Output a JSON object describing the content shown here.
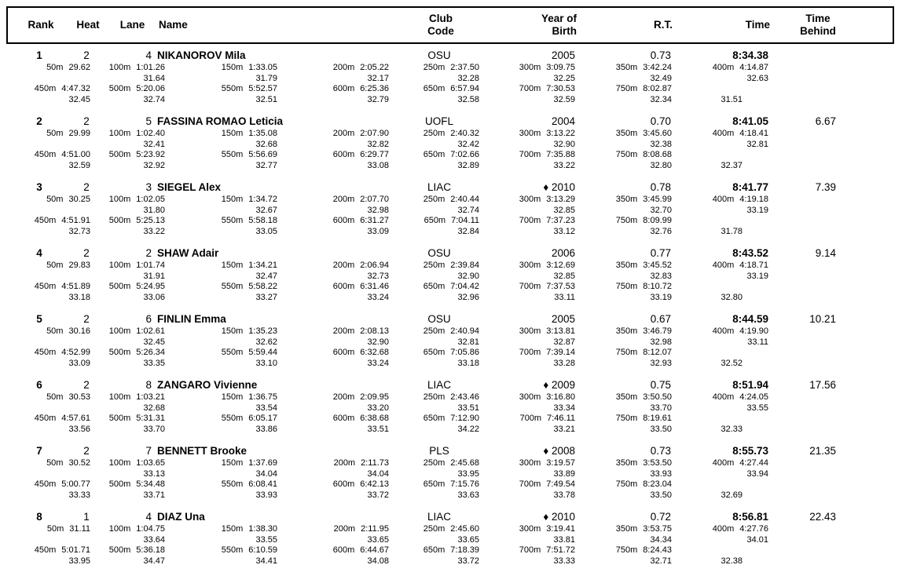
{
  "page": {
    "background": "#ffffff",
    "text_color": "#000000"
  },
  "header": {
    "rank": "Rank",
    "heat": "Heat",
    "lane": "Lane",
    "name": "Name",
    "club_line1": "Club",
    "club_line2": "Code",
    "yob_line1": "Year of",
    "yob_line2": "Birth",
    "rt": "R.T.",
    "time": "Time",
    "behind_line1": "Time",
    "behind_line2": "Behind"
  },
  "age_marker_glyph": "♦",
  "results": [
    {
      "rank": "1",
      "heat": "2",
      "lane": "4",
      "name": "NIKANOROV Mila",
      "club": "OSU",
      "year_marker": "",
      "year": "2005",
      "rt": "0.73",
      "time": "8:34.38",
      "behind": "",
      "splits_row1": [
        {
          "d": "50m",
          "t": "29.62"
        },
        {
          "d": "100m",
          "t": "1:01.26"
        },
        {
          "d": "150m",
          "t": "1:33.05"
        },
        {
          "d": "200m",
          "t": "2:05.22"
        },
        {
          "d": "250m",
          "t": "2:37.50"
        },
        {
          "d": "300m",
          "t": "3:09.75"
        },
        {
          "d": "350m",
          "t": "3:42.24"
        },
        {
          "d": "400m",
          "t": "4:14.87"
        }
      ],
      "laps_row1": [
        "31.64",
        "31.79",
        "32.17",
        "32.28",
        "32.25",
        "32.49",
        "32.63"
      ],
      "splits_row2": [
        {
          "d": "450m",
          "t": "4:47.32"
        },
        {
          "d": "500m",
          "t": "5:20.06"
        },
        {
          "d": "550m",
          "t": "5:52.57"
        },
        {
          "d": "600m",
          "t": "6:25.36"
        },
        {
          "d": "650m",
          "t": "6:57.94"
        },
        {
          "d": "700m",
          "t": "7:30.53"
        },
        {
          "d": "750m",
          "t": "8:02.87"
        }
      ],
      "laps_row2": [
        "32.45",
        "32.74",
        "32.51",
        "32.79",
        "32.58",
        "32.59",
        "32.34"
      ],
      "final_lap": "31.51"
    },
    {
      "rank": "2",
      "heat": "2",
      "lane": "5",
      "name": "FASSINA ROMAO Leticia",
      "club": "UOFL",
      "year_marker": "",
      "year": "2004",
      "rt": "0.70",
      "time": "8:41.05",
      "behind": "6.67",
      "splits_row1": [
        {
          "d": "50m",
          "t": "29.99"
        },
        {
          "d": "100m",
          "t": "1:02.40"
        },
        {
          "d": "150m",
          "t": "1:35.08"
        },
        {
          "d": "200m",
          "t": "2:07.90"
        },
        {
          "d": "250m",
          "t": "2:40.32"
        },
        {
          "d": "300m",
          "t": "3:13.22"
        },
        {
          "d": "350m",
          "t": "3:45.60"
        },
        {
          "d": "400m",
          "t": "4:18.41"
        }
      ],
      "laps_row1": [
        "32.41",
        "32.68",
        "32.82",
        "32.42",
        "32.90",
        "32.38",
        "32.81"
      ],
      "splits_row2": [
        {
          "d": "450m",
          "t": "4:51.00"
        },
        {
          "d": "500m",
          "t": "5:23.92"
        },
        {
          "d": "550m",
          "t": "5:56.69"
        },
        {
          "d": "600m",
          "t": "6:29.77"
        },
        {
          "d": "650m",
          "t": "7:02.66"
        },
        {
          "d": "700m",
          "t": "7:35.88"
        },
        {
          "d": "750m",
          "t": "8:08.68"
        }
      ],
      "laps_row2": [
        "32.59",
        "32.92",
        "32.77",
        "33.08",
        "32.89",
        "33.22",
        "32.80"
      ],
      "final_lap": "32.37"
    },
    {
      "rank": "3",
      "heat": "2",
      "lane": "3",
      "name": "SIEGEL Alex",
      "club": "LIAC",
      "year_marker": "♦",
      "year": "2010",
      "rt": "0.78",
      "time": "8:41.77",
      "behind": "7.39",
      "splits_row1": [
        {
          "d": "50m",
          "t": "30.25"
        },
        {
          "d": "100m",
          "t": "1:02.05"
        },
        {
          "d": "150m",
          "t": "1:34.72"
        },
        {
          "d": "200m",
          "t": "2:07.70"
        },
        {
          "d": "250m",
          "t": "2:40.44"
        },
        {
          "d": "300m",
          "t": "3:13.29"
        },
        {
          "d": "350m",
          "t": "3:45.99"
        },
        {
          "d": "400m",
          "t": "4:19.18"
        }
      ],
      "laps_row1": [
        "31.80",
        "32.67",
        "32.98",
        "32.74",
        "32.85",
        "32.70",
        "33.19"
      ],
      "splits_row2": [
        {
          "d": "450m",
          "t": "4:51.91"
        },
        {
          "d": "500m",
          "t": "5:25.13"
        },
        {
          "d": "550m",
          "t": "5:58.18"
        },
        {
          "d": "600m",
          "t": "6:31.27"
        },
        {
          "d": "650m",
          "t": "7:04.11"
        },
        {
          "d": "700m",
          "t": "7:37.23"
        },
        {
          "d": "750m",
          "t": "8:09.99"
        }
      ],
      "laps_row2": [
        "32.73",
        "33.22",
        "33.05",
        "33.09",
        "32.84",
        "33.12",
        "32.76"
      ],
      "final_lap": "31.78"
    },
    {
      "rank": "4",
      "heat": "2",
      "lane": "2",
      "name": "SHAW Adair",
      "club": "OSU",
      "year_marker": "",
      "year": "2006",
      "rt": "0.77",
      "time": "8:43.52",
      "behind": "9.14",
      "splits_row1": [
        {
          "d": "50m",
          "t": "29.83"
        },
        {
          "d": "100m",
          "t": "1:01.74"
        },
        {
          "d": "150m",
          "t": "1:34.21"
        },
        {
          "d": "200m",
          "t": "2:06.94"
        },
        {
          "d": "250m",
          "t": "2:39.84"
        },
        {
          "d": "300m",
          "t": "3:12.69"
        },
        {
          "d": "350m",
          "t": "3:45.52"
        },
        {
          "d": "400m",
          "t": "4:18.71"
        }
      ],
      "laps_row1": [
        "31.91",
        "32.47",
        "32.73",
        "32.90",
        "32.85",
        "32.83",
        "33.19"
      ],
      "splits_row2": [
        {
          "d": "450m",
          "t": "4:51.89"
        },
        {
          "d": "500m",
          "t": "5:24.95"
        },
        {
          "d": "550m",
          "t": "5:58.22"
        },
        {
          "d": "600m",
          "t": "6:31.46"
        },
        {
          "d": "650m",
          "t": "7:04.42"
        },
        {
          "d": "700m",
          "t": "7:37.53"
        },
        {
          "d": "750m",
          "t": "8:10.72"
        }
      ],
      "laps_row2": [
        "33.18",
        "33.06",
        "33.27",
        "33.24",
        "32.96",
        "33.11",
        "33.19"
      ],
      "final_lap": "32.80"
    },
    {
      "rank": "5",
      "heat": "2",
      "lane": "6",
      "name": "FINLIN Emma",
      "club": "OSU",
      "year_marker": "",
      "year": "2005",
      "rt": "0.67",
      "time": "8:44.59",
      "behind": "10.21",
      "splits_row1": [
        {
          "d": "50m",
          "t": "30.16"
        },
        {
          "d": "100m",
          "t": "1:02.61"
        },
        {
          "d": "150m",
          "t": "1:35.23"
        },
        {
          "d": "200m",
          "t": "2:08.13"
        },
        {
          "d": "250m",
          "t": "2:40.94"
        },
        {
          "d": "300m",
          "t": "3:13.81"
        },
        {
          "d": "350m",
          "t": "3:46.79"
        },
        {
          "d": "400m",
          "t": "4:19.90"
        }
      ],
      "laps_row1": [
        "32.45",
        "32.62",
        "32.90",
        "32.81",
        "32.87",
        "32.98",
        "33.11"
      ],
      "splits_row2": [
        {
          "d": "450m",
          "t": "4:52.99"
        },
        {
          "d": "500m",
          "t": "5:26.34"
        },
        {
          "d": "550m",
          "t": "5:59.44"
        },
        {
          "d": "600m",
          "t": "6:32.68"
        },
        {
          "d": "650m",
          "t": "7:05.86"
        },
        {
          "d": "700m",
          "t": "7:39.14"
        },
        {
          "d": "750m",
          "t": "8:12.07"
        }
      ],
      "laps_row2": [
        "33.09",
        "33.35",
        "33.10",
        "33.24",
        "33.18",
        "33.28",
        "32.93"
      ],
      "final_lap": "32.52"
    },
    {
      "rank": "6",
      "heat": "2",
      "lane": "8",
      "name": "ZANGARO Vivienne",
      "club": "LIAC",
      "year_marker": "♦",
      "year": "2009",
      "rt": "0.75",
      "time": "8:51.94",
      "behind": "17.56",
      "splits_row1": [
        {
          "d": "50m",
          "t": "30.53"
        },
        {
          "d": "100m",
          "t": "1:03.21"
        },
        {
          "d": "150m",
          "t": "1:36.75"
        },
        {
          "d": "200m",
          "t": "2:09.95"
        },
        {
          "d": "250m",
          "t": "2:43.46"
        },
        {
          "d": "300m",
          "t": "3:16.80"
        },
        {
          "d": "350m",
          "t": "3:50.50"
        },
        {
          "d": "400m",
          "t": "4:24.05"
        }
      ],
      "laps_row1": [
        "32.68",
        "33.54",
        "33.20",
        "33.51",
        "33.34",
        "33.70",
        "33.55"
      ],
      "splits_row2": [
        {
          "d": "450m",
          "t": "4:57.61"
        },
        {
          "d": "500m",
          "t": "5:31.31"
        },
        {
          "d": "550m",
          "t": "6:05.17"
        },
        {
          "d": "600m",
          "t": "6:38.68"
        },
        {
          "d": "650m",
          "t": "7:12.90"
        },
        {
          "d": "700m",
          "t": "7:46.11"
        },
        {
          "d": "750m",
          "t": "8:19.61"
        }
      ],
      "laps_row2": [
        "33.56",
        "33.70",
        "33.86",
        "33.51",
        "34.22",
        "33.21",
        "33.50"
      ],
      "final_lap": "32.33"
    },
    {
      "rank": "7",
      "heat": "2",
      "lane": "7",
      "name": "BENNETT Brooke",
      "club": "PLS",
      "year_marker": "♦",
      "year": "2008",
      "rt": "0.73",
      "time": "8:55.73",
      "behind": "21.35",
      "splits_row1": [
        {
          "d": "50m",
          "t": "30.52"
        },
        {
          "d": "100m",
          "t": "1:03.65"
        },
        {
          "d": "150m",
          "t": "1:37.69"
        },
        {
          "d": "200m",
          "t": "2:11.73"
        },
        {
          "d": "250m",
          "t": "2:45.68"
        },
        {
          "d": "300m",
          "t": "3:19.57"
        },
        {
          "d": "350m",
          "t": "3:53.50"
        },
        {
          "d": "400m",
          "t": "4:27.44"
        }
      ],
      "laps_row1": [
        "33.13",
        "34.04",
        "34.04",
        "33.95",
        "33.89",
        "33.93",
        "33.94"
      ],
      "splits_row2": [
        {
          "d": "450m",
          "t": "5:00.77"
        },
        {
          "d": "500m",
          "t": "5:34.48"
        },
        {
          "d": "550m",
          "t": "6:08.41"
        },
        {
          "d": "600m",
          "t": "6:42.13"
        },
        {
          "d": "650m",
          "t": "7:15.76"
        },
        {
          "d": "700m",
          "t": "7:49.54"
        },
        {
          "d": "750m",
          "t": "8:23.04"
        }
      ],
      "laps_row2": [
        "33.33",
        "33.71",
        "33.93",
        "33.72",
        "33.63",
        "33.78",
        "33.50"
      ],
      "final_lap": "32.69"
    },
    {
      "rank": "8",
      "heat": "1",
      "lane": "4",
      "name": "DIAZ Una",
      "club": "LIAC",
      "year_marker": "♦",
      "year": "2010",
      "rt": "0.72",
      "time": "8:56.81",
      "behind": "22.43",
      "splits_row1": [
        {
          "d": "50m",
          "t": "31.11"
        },
        {
          "d": "100m",
          "t": "1:04.75"
        },
        {
          "d": "150m",
          "t": "1:38.30"
        },
        {
          "d": "200m",
          "t": "2:11.95"
        },
        {
          "d": "250m",
          "t": "2:45.60"
        },
        {
          "d": "300m",
          "t": "3:19.41"
        },
        {
          "d": "350m",
          "t": "3:53.75"
        },
        {
          "d": "400m",
          "t": "4:27.76"
        }
      ],
      "laps_row1": [
        "33.64",
        "33.55",
        "33.65",
        "33.65",
        "33.81",
        "34.34",
        "34.01"
      ],
      "splits_row2": [
        {
          "d": "450m",
          "t": "5:01.71"
        },
        {
          "d": "500m",
          "t": "5:36.18"
        },
        {
          "d": "550m",
          "t": "6:10.59"
        },
        {
          "d": "600m",
          "t": "6:44.67"
        },
        {
          "d": "650m",
          "t": "7:18.39"
        },
        {
          "d": "700m",
          "t": "7:51.72"
        },
        {
          "d": "750m",
          "t": "8:24.43"
        }
      ],
      "laps_row2": [
        "33.95",
        "34.47",
        "34.41",
        "34.08",
        "33.72",
        "33.33",
        "32.71"
      ],
      "final_lap": "32.38"
    }
  ]
}
